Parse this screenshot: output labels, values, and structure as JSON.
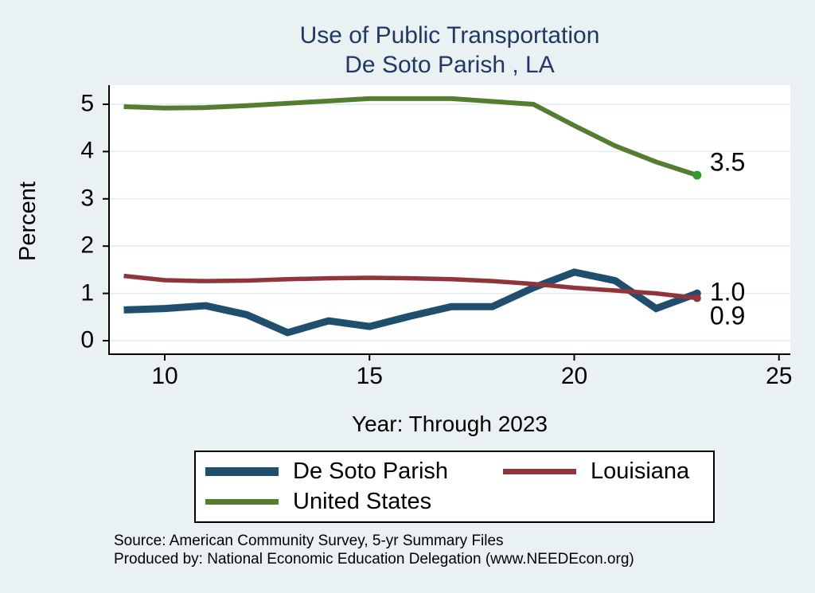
{
  "title": {
    "line1": "Use of Public Transportation",
    "line2": "De Soto Parish , LA"
  },
  "chart_data": {
    "type": "line",
    "x": [
      9,
      10,
      11,
      12,
      13,
      14,
      15,
      16,
      17,
      18,
      19,
      20,
      21,
      22,
      23
    ],
    "series": [
      {
        "name": "De Soto Parish",
        "color": "#1f4e6f",
        "marker_color": "#1f4e6f",
        "line_width": 9,
        "values": [
          0.65,
          0.68,
          0.74,
          0.55,
          0.17,
          0.42,
          0.3,
          0.52,
          0.72,
          0.72,
          1.12,
          1.45,
          1.27,
          0.68,
          1.0
        ],
        "end_label": "1.0"
      },
      {
        "name": "Louisiana",
        "color": "#90353b",
        "marker_color": "#90353b",
        "line_width": 5.5,
        "values": [
          1.37,
          1.28,
          1.26,
          1.27,
          1.3,
          1.32,
          1.33,
          1.32,
          1.3,
          1.26,
          1.2,
          1.12,
          1.06,
          1.0,
          0.9
        ],
        "end_label": "0.9"
      },
      {
        "name": "United States",
        "color": "#567d2f",
        "marker_color": "#2f9e2f",
        "line_width": 6,
        "values": [
          4.95,
          4.92,
          4.93,
          4.97,
          5.02,
          5.07,
          5.12,
          5.12,
          5.12,
          5.06,
          5.0,
          4.55,
          4.12,
          3.78,
          3.5
        ],
        "end_label": "3.5"
      }
    ],
    "title": "Use of Public Transportation De Soto Parish , LA",
    "xlabel": "Year: Through 2023",
    "ylabel": "Percent",
    "x_ticks": [
      10,
      15,
      20,
      25
    ],
    "y_ticks": [
      0,
      1,
      2,
      3,
      4,
      5
    ],
    "xlim": [
      8.6,
      25.3
    ],
    "ylim": [
      0,
      5.4
    ],
    "grid": true,
    "gridline_color": "#dfecf1",
    "plot_background": "#ffffff",
    "page_background": "#e9f1f3",
    "axis_color": "#000000",
    "legend_position": "bottom"
  },
  "footer": {
    "source_line1": "Source: American Community Survey, 5-yr Summary Files",
    "source_line2": "Produced by: National Economic Education Delegation (www.NEEDEcon.org)"
  }
}
